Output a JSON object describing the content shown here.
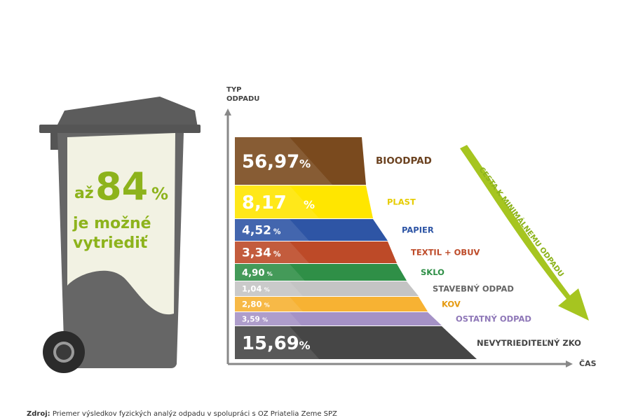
{
  "bin": {
    "prefix": "až",
    "number": "84",
    "unit": "%",
    "line2": "je možné",
    "line3": "vytriediť",
    "accent_color": "#8db31c",
    "body_color": "#666666",
    "panel_color": "#f2f2e3"
  },
  "chart_data": {
    "type": "bar",
    "orientation": "horizontal",
    "ylabel_line1": "TYP",
    "ylabel_line2": "ODPADU",
    "xlabel": "ČAS",
    "trend_label": "CESTA K MINIMÁLNEMU ODPADU",
    "trend_color": "#a6c520",
    "categories": [
      "BIOODPAD",
      "PLAST",
      "PAPIER",
      "TEXTIL + OBUV",
      "SKLO",
      "STAVEBNÝ ODPAD",
      "KOV",
      "OSTATNÝ ODPAD",
      "NEVYTRIEDITEĽNÝ ZKO"
    ],
    "values": [
      56.97,
      8.17,
      4.52,
      3.34,
      4.9,
      1.04,
      2.8,
      3.59,
      15.69
    ],
    "value_labels": [
      "56,97",
      "8,17",
      "4,52",
      "3,34",
      "4,90",
      "1,04",
      "2,80",
      "3,59",
      "15,69"
    ],
    "percent_sign": "%",
    "colors": [
      "#7a4a1e",
      "#ffe600",
      "#2e55a5",
      "#bd4a28",
      "#2f8f47",
      "#c4c4c4",
      "#f7b233",
      "#a592c6",
      "#464646"
    ],
    "label_colors": [
      "#6b4220",
      "#e6cc00",
      "#2e55a5",
      "#bd4a28",
      "#2f8f47",
      "#666666",
      "#e59a10",
      "#8f78b8",
      "#444444"
    ]
  },
  "source": {
    "prefix": "Zdroj:",
    "text": "Priemer výsledkov fyzických analýz odpadu v spolupráci s OZ Priatelia Zeme SPZ"
  }
}
